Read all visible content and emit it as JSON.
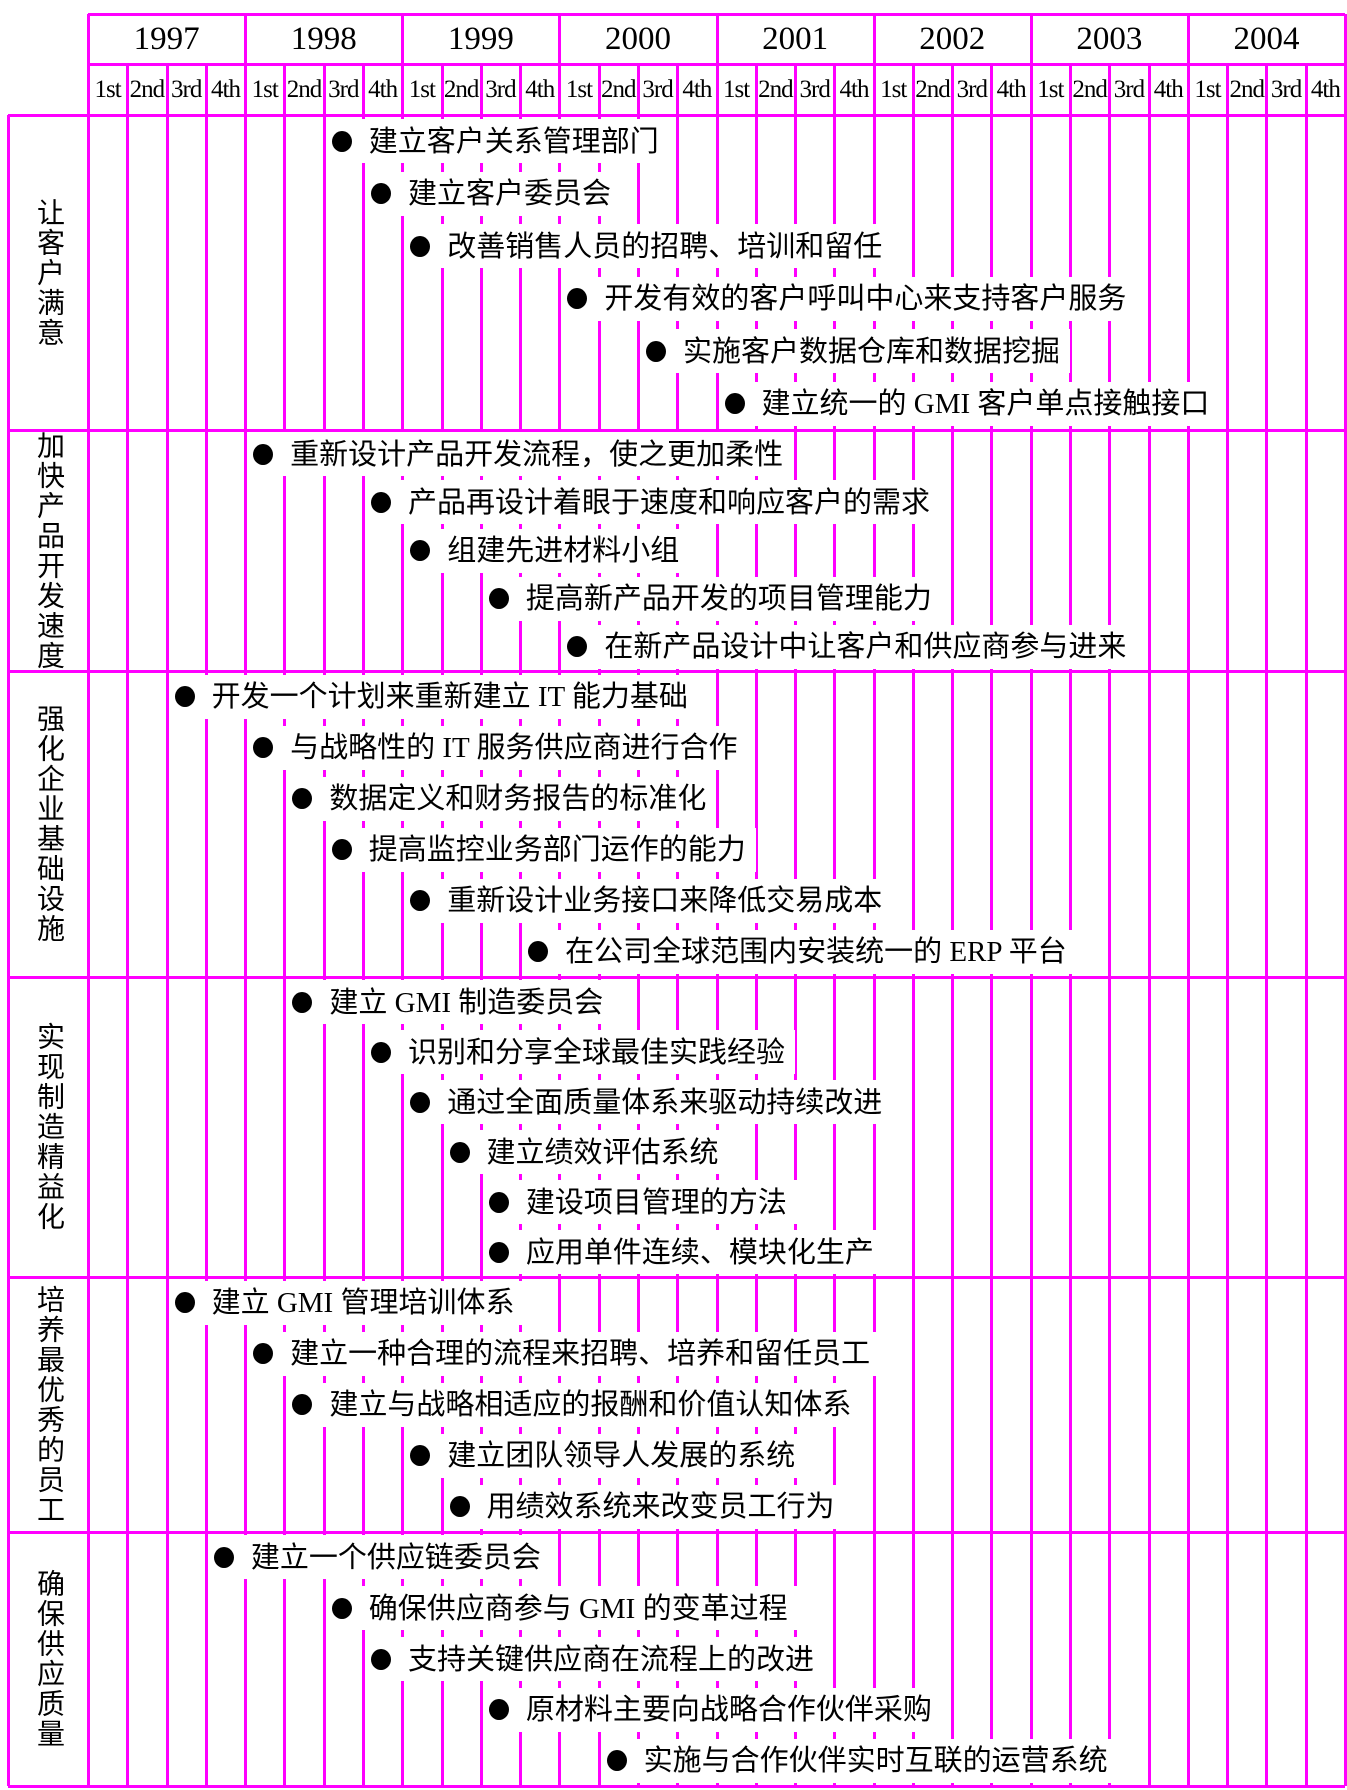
{
  "header": {
    "years": [
      "1997",
      "1998",
      "1999",
      "2000",
      "2001",
      "2002",
      "2003",
      "2004"
    ],
    "quarters": [
      "1st",
      "2nd",
      "3rd",
      "4th"
    ]
  },
  "colors": {
    "grid": "#ff00ff",
    "text": "#000000",
    "background": "#ffffff",
    "bullet": "#000000"
  },
  "sections": [
    {
      "label": "让客户满意",
      "tasks": [
        {
          "start_quarter_index": 6,
          "text": "建立客户关系管理部门"
        },
        {
          "start_quarter_index": 7,
          "text": "建立客户委员会"
        },
        {
          "start_quarter_index": 8,
          "text": "改善销售人员的招聘、培训和留任"
        },
        {
          "start_quarter_index": 12,
          "text": "开发有效的客户呼叫中心来支持客户服务"
        },
        {
          "start_quarter_index": 14,
          "text": "实施客户数据仓库和数据挖掘"
        },
        {
          "start_quarter_index": 16,
          "text": "建立统一的 GMI 客户单点接触接口"
        }
      ]
    },
    {
      "label": "加快产品开发速度",
      "tasks": [
        {
          "start_quarter_index": 4,
          "text": "重新设计产品开发流程，使之更加柔性"
        },
        {
          "start_quarter_index": 7,
          "text": "产品再设计着眼于速度和响应客户的需求"
        },
        {
          "start_quarter_index": 8,
          "text": "组建先进材料小组"
        },
        {
          "start_quarter_index": 10,
          "text": "提高新产品开发的项目管理能力"
        },
        {
          "start_quarter_index": 12,
          "text": "在新产品设计中让客户和供应商参与进来"
        }
      ]
    },
    {
      "label": "强化企业基础设施",
      "tasks": [
        {
          "start_quarter_index": 2,
          "text": "开发一个计划来重新建立 IT 能力基础"
        },
        {
          "start_quarter_index": 4,
          "text": "与战略性的 IT 服务供应商进行合作"
        },
        {
          "start_quarter_index": 5,
          "text": "数据定义和财务报告的标准化"
        },
        {
          "start_quarter_index": 6,
          "text": "提高监控业务部门运作的能力"
        },
        {
          "start_quarter_index": 8,
          "text": "重新设计业务接口来降低交易成本"
        },
        {
          "start_quarter_index": 11,
          "text": "在公司全球范围内安装统一的 ERP 平台"
        }
      ]
    },
    {
      "label": "实现制造精益化",
      "tasks": [
        {
          "start_quarter_index": 5,
          "text": "建立 GMI 制造委员会"
        },
        {
          "start_quarter_index": 7,
          "text": "识别和分享全球最佳实践经验"
        },
        {
          "start_quarter_index": 8,
          "text": "通过全面质量体系来驱动持续改进"
        },
        {
          "start_quarter_index": 9,
          "text": "建立绩效评估系统"
        },
        {
          "start_quarter_index": 10,
          "text": "建设项目管理的方法"
        },
        {
          "start_quarter_index": 10,
          "text": "应用单件连续、模块化生产"
        }
      ]
    },
    {
      "label": "培养最优秀的员工",
      "tasks": [
        {
          "start_quarter_index": 2,
          "text": "建立 GMI 管理培训体系"
        },
        {
          "start_quarter_index": 4,
          "text": "建立一种合理的流程来招聘、培养和留任员工"
        },
        {
          "start_quarter_index": 5,
          "text": "建立与战略相适应的报酬和价值认知体系"
        },
        {
          "start_quarter_index": 8,
          "text": "建立团队领导人发展的系统"
        },
        {
          "start_quarter_index": 9,
          "text": "用绩效系统来改变员工行为"
        }
      ]
    },
    {
      "label": "确保供应质量",
      "tasks": [
        {
          "start_quarter_index": 3,
          "text": "建立一个供应链委员会"
        },
        {
          "start_quarter_index": 6,
          "text": "确保供应商参与 GMI 的变革过程"
        },
        {
          "start_quarter_index": 7,
          "text": "支持关键供应商在流程上的改进"
        },
        {
          "start_quarter_index": 10,
          "text": "原材料主要向战略合作伙伴采购"
        },
        {
          "start_quarter_index": 13,
          "text": "实施与合作伙伴实时互联的运营系统"
        }
      ]
    }
  ]
}
